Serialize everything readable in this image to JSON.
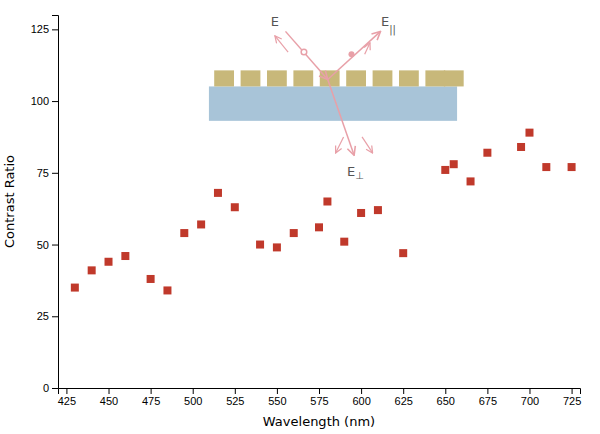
{
  "chart_data": {
    "type": "scatter",
    "xlabel": "Wavelength (nm)",
    "ylabel": "Contrast Ratio",
    "x": [
      430,
      440,
      450,
      460,
      475,
      485,
      495,
      505,
      515,
      525,
      540,
      550,
      560,
      575,
      580,
      590,
      600,
      610,
      625,
      650,
      655,
      665,
      675,
      695,
      700,
      710,
      725
    ],
    "values": [
      35,
      41,
      44,
      46,
      38,
      34,
      54,
      57,
      68,
      63,
      50,
      49,
      54,
      56,
      65,
      51,
      61,
      62,
      47,
      76,
      78,
      72,
      82,
      84,
      89,
      77,
      77
    ],
    "color": "#c0392b",
    "marker": "square",
    "xlim": [
      420,
      730
    ],
    "ylim": [
      0,
      130
    ],
    "xticks": [
      425,
      450,
      475,
      500,
      525,
      550,
      575,
      600,
      625,
      650,
      675,
      700,
      725
    ],
    "yticks": [
      0,
      25,
      50,
      75,
      100,
      125
    ],
    "grid": false,
    "annotations": [
      "E",
      "E||",
      "E⊥"
    ]
  }
}
